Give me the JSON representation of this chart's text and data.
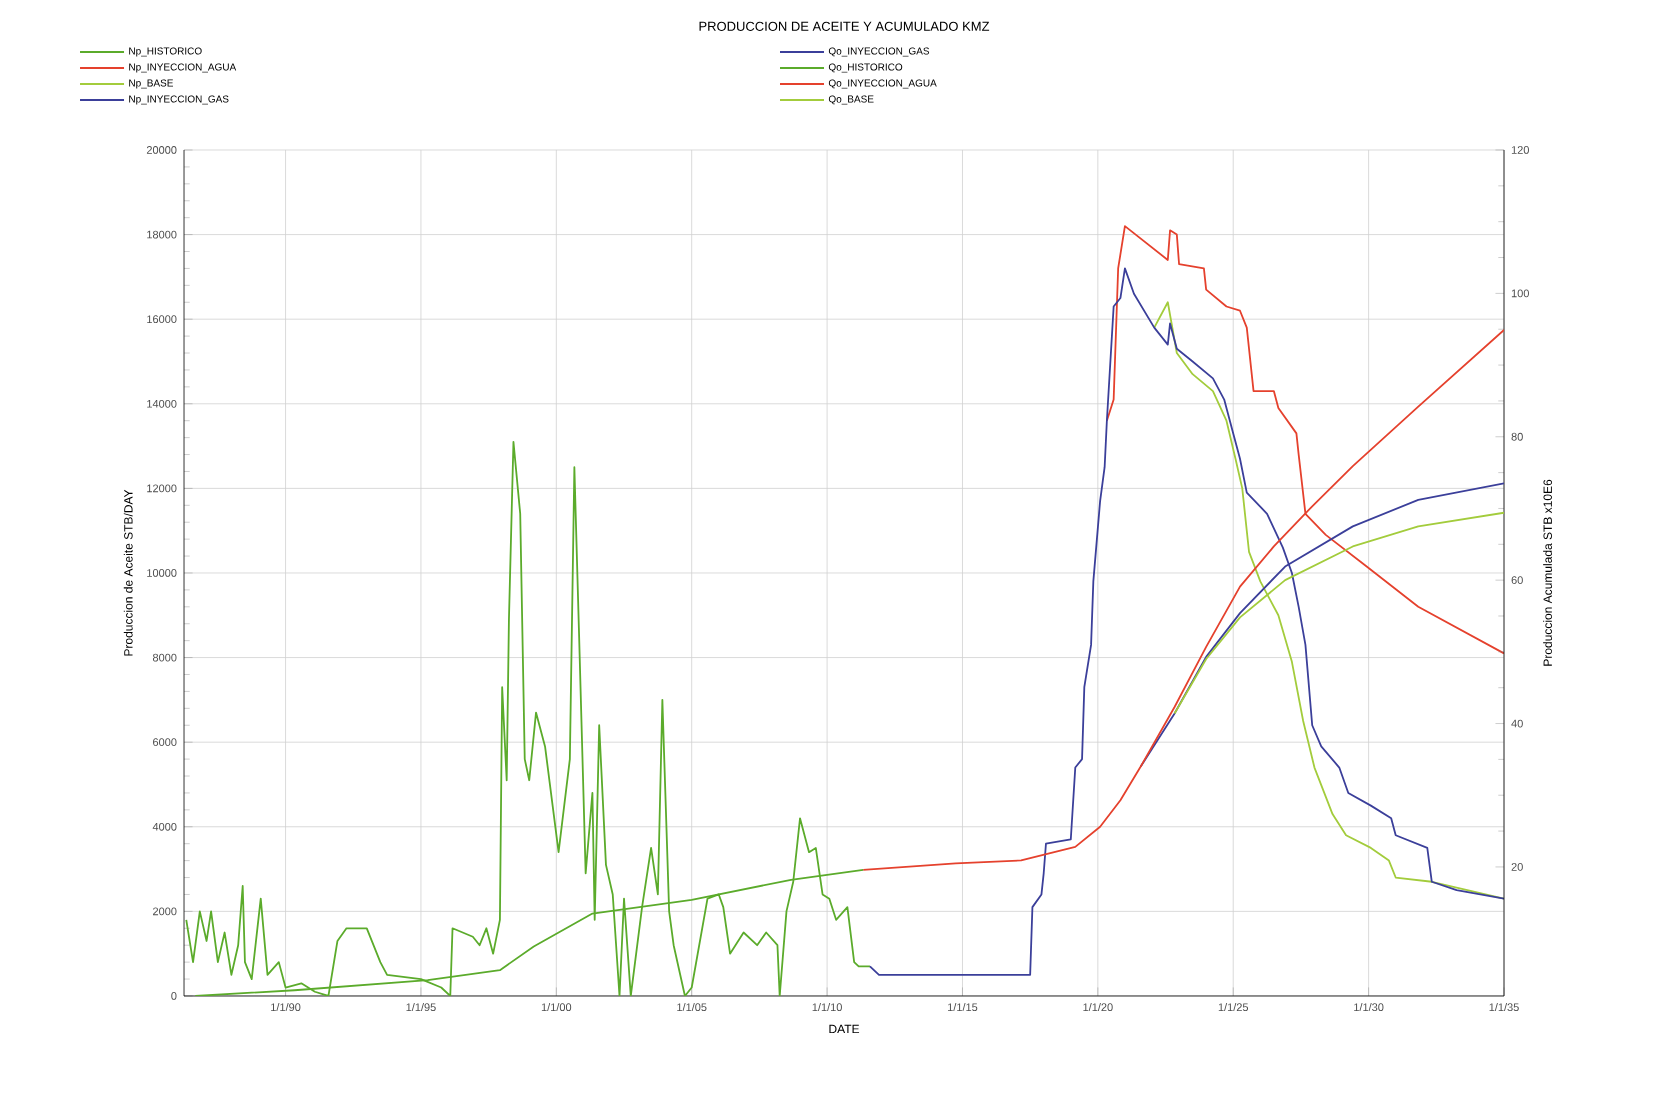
{
  "chart_data": {
    "type": "line",
    "title": "PRODUCCION DE ACEITE Y ACUMULADO KMZ",
    "xlabel": "DATE",
    "ylabel": "Produccion de Aceite STB/DAY",
    "y2label": "Produccion Acumulada STB x10E6",
    "xlim": [
      "1986-04",
      "2035-01"
    ],
    "xticks": [
      {
        "value": "1990-01",
        "label": "1/1/90"
      },
      {
        "value": "1995-01",
        "label": "1/1/95"
      },
      {
        "value": "2000-01",
        "label": "1/1/00"
      },
      {
        "value": "2005-01",
        "label": "1/1/05"
      },
      {
        "value": "2010-01",
        "label": "1/1/10"
      },
      {
        "value": "2015-01",
        "label": "1/1/15"
      },
      {
        "value": "2020-01",
        "label": "1/1/20"
      },
      {
        "value": "2025-01",
        "label": "1/1/25"
      },
      {
        "value": "2030-01",
        "label": "1/1/30"
      },
      {
        "value": "2035-01",
        "label": "1/1/35"
      }
    ],
    "ylim": [
      0,
      20000
    ],
    "yticks": [
      0,
      2000,
      4000,
      6000,
      8000,
      10000,
      12000,
      14000,
      16000,
      18000,
      20000
    ],
    "y2lim": [
      2,
      120
    ],
    "y2ticks": [
      20,
      40,
      60,
      80,
      100,
      120
    ],
    "grid": true,
    "legend": "top",
    "series": [
      {
        "name": "Np_HISTORICO",
        "color": "#5bab2b",
        "axis": "y2",
        "x": [
          "1986-09",
          "1990-05",
          "1995-04",
          "1997-12",
          "1999-03",
          "2001-05",
          "2005-01",
          "2008-09",
          "2011-05"
        ],
        "values": [
          2.0,
          2.8,
          4.2,
          5.6,
          8.9,
          13.5,
          15.4,
          18.2,
          19.6
        ]
      },
      {
        "name": "Np_INYECCION_AGUA",
        "color": "#e5412d",
        "axis": "y2",
        "x": [
          "2011-05",
          "2014-10",
          "2017-03",
          "2019-03",
          "2020-02",
          "2020-11",
          "2021-08",
          "2022-11",
          "2024-01",
          "2025-04",
          "2026-07",
          "2027-12",
          "2029-06",
          "2031-11",
          "2035-01"
        ],
        "values": [
          19.6,
          20.5,
          20.9,
          22.8,
          25.6,
          29.3,
          34.0,
          42.3,
          50.7,
          59.1,
          64.7,
          70.3,
          75.9,
          84.2,
          94.9
        ]
      },
      {
        "name": "Np_BASE",
        "color": "#a3cc3c",
        "axis": "y2",
        "x": [
          "2022-11",
          "2024-01",
          "2025-04",
          "2026-12",
          "2029-06",
          "2031-11",
          "2035-01"
        ],
        "values": [
          41.4,
          49.0,
          54.8,
          60.0,
          64.7,
          67.5,
          69.4
        ]
      },
      {
        "name": "Np_INYECCION_GAS",
        "color": "#3b3f9a",
        "axis": "y2",
        "x": [
          "2021-08",
          "2022-11",
          "2024-01",
          "2025-04",
          "2026-12",
          "2029-06",
          "2031-11",
          "2035-01"
        ],
        "values": [
          34.0,
          41.4,
          49.3,
          55.4,
          61.9,
          67.5,
          71.2,
          73.5
        ]
      },
      {
        "name": "Qo_INYECCION_GAS",
        "color": "#3b3f9a",
        "x": [
          "2011-08",
          "2011-12",
          "2017-07",
          "2017-08",
          "2017-12",
          "2018-01",
          "2018-02",
          "2019-01",
          "2019-03",
          "2019-06",
          "2019-07",
          "2019-10",
          "2019-11",
          "2020-02",
          "2020-04",
          "2020-05",
          "2020-08",
          "2020-11",
          "2021-01",
          "2021-05",
          "2022-02",
          "2022-08",
          "2022-09",
          "2022-12",
          "2023-07",
          "2024-04",
          "2024-09",
          "2025-01",
          "2025-04",
          "2025-07",
          "2026-04",
          "2026-11",
          "2027-03",
          "2027-06",
          "2027-09",
          "2027-12",
          "2028-04",
          "2028-12",
          "2029-04",
          "2030-02",
          "2030-11",
          "2031-01",
          "2032-03",
          "2032-05",
          "2033-04",
          "2035-01"
        ],
        "values": [
          700,
          500,
          500,
          2100,
          2400,
          2900,
          3600,
          3700,
          5400,
          5600,
          7300,
          8300,
          9800,
          11700,
          12500,
          13600,
          16300,
          16500,
          17200,
          16600,
          15800,
          15400,
          15900,
          15300,
          15000,
          14600,
          14100,
          13300,
          12700,
          11900,
          11400,
          10600,
          10000,
          9200,
          8300,
          6400,
          5900,
          5400,
          4800,
          4500,
          4200,
          3800,
          3500,
          2700,
          2500,
          2300
        ]
      },
      {
        "name": "Qo_HISTORICO",
        "color": "#5bab2b",
        "x": [
          "1986-05",
          "1986-08",
          "1986-11",
          "1987-02",
          "1987-04",
          "1987-07",
          "1987-10",
          "1988-01",
          "1988-04",
          "1988-06",
          "1988-07",
          "1988-10",
          "1989-02",
          "1989-05",
          "1989-10",
          "1990-01",
          "1990-08",
          "1991-02",
          "1991-08",
          "1991-12",
          "1992-04",
          "1993-01",
          "1993-07",
          "1993-10",
          "1995-01",
          "1995-10",
          "1996-02",
          "1996-03",
          "1996-12",
          "1997-03",
          "1997-06",
          "1997-09",
          "1997-12",
          "1998-01",
          "1998-03",
          "1998-04",
          "1998-06",
          "1998-09",
          "1998-11",
          "1999-01",
          "1999-04",
          "1999-08",
          "2000-02",
          "2000-07",
          "2000-09",
          "2000-11",
          "2001-02",
          "2001-05",
          "2001-06",
          "2001-08",
          "2001-11",
          "2002-02",
          "2002-05",
          "2002-07",
          "2002-10",
          "2003-03",
          "2003-07",
          "2003-10",
          "2003-12",
          "2004-03",
          "2004-05",
          "2004-10",
          "2005-01",
          "2005-08",
          "2006-01",
          "2006-03",
          "2006-06",
          "2006-12",
          "2007-06",
          "2007-10",
          "2008-03",
          "2008-04",
          "2008-07",
          "2008-10",
          "2009-01",
          "2009-05",
          "2009-08",
          "2009-11",
          "2010-02",
          "2010-05",
          "2010-10",
          "2011-01",
          "2011-03",
          "2011-08"
        ],
        "values": [
          1800,
          800,
          2000,
          1300,
          2000,
          800,
          1500,
          500,
          1200,
          2600,
          800,
          400,
          2300,
          500,
          800,
          200,
          300,
          100,
          0,
          1300,
          1600,
          1600,
          800,
          500,
          400,
          200,
          0,
          1600,
          1400,
          1200,
          1600,
          1000,
          1800,
          7300,
          5100,
          8900,
          13100,
          11400,
          5600,
          5100,
          6700,
          5900,
          3400,
          5600,
          12500,
          8700,
          2900,
          4800,
          1800,
          6400,
          3100,
          2400,
          0,
          2300,
          0,
          2100,
          3500,
          2400,
          7000,
          2000,
          1200,
          0,
          200,
          2300,
          2400,
          2100,
          1000,
          1500,
          1200,
          1500,
          1200,
          0,
          2000,
          2700,
          4200,
          3400,
          3500,
          2400,
          2300,
          1800,
          2100,
          800,
          700,
          700
        ]
      },
      {
        "name": "Qo_INYECCION_AGUA",
        "color": "#e5412d",
        "x": [
          "2020-05",
          "2020-08",
          "2020-10",
          "2021-01",
          "2022-08",
          "2022-09",
          "2022-12",
          "2023-01",
          "2023-12",
          "2024-01",
          "2024-10",
          "2025-04",
          "2025-07",
          "2025-10",
          "2026-07",
          "2026-09",
          "2027-05",
          "2027-06",
          "2027-09",
          "2028-06",
          "2029-11",
          "2031-11",
          "2035-01"
        ],
        "values": [
          13600,
          14100,
          17200,
          18200,
          17400,
          18100,
          18000,
          17300,
          17200,
          16700,
          16300,
          16200,
          15800,
          14300,
          14300,
          13900,
          13300,
          12800,
          11400,
          10900,
          10200,
          9200,
          8100
        ]
      },
      {
        "name": "Qo_BASE",
        "color": "#a3cc3c",
        "x": [
          "2022-02",
          "2022-08",
          "2022-12",
          "2023-07",
          "2024-04",
          "2024-10",
          "2025-02",
          "2025-05",
          "2025-08",
          "2026-01",
          "2026-09",
          "2027-03",
          "2027-08",
          "2028-01",
          "2028-09",
          "2029-03",
          "2030-02",
          "2030-10",
          "2031-01",
          "2032-05",
          "2035-01"
        ],
        "values": [
          15800,
          16400,
          15200,
          14700,
          14300,
          13600,
          12700,
          12000,
          10500,
          9800,
          9000,
          7900,
          6500,
          5400,
          4300,
          3800,
          3500,
          3200,
          2800,
          2700,
          2300
        ]
      }
    ]
  }
}
